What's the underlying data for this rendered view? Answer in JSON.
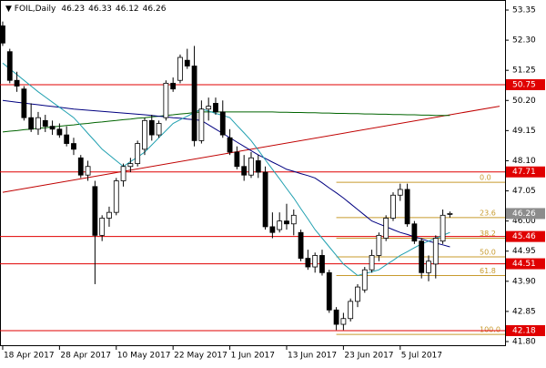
{
  "chart_data": {
    "type": "candlestick",
    "title": "FOIL,Daily",
    "categories": [
      "18 Apr 2017",
      null,
      null,
      null,
      null,
      null,
      null,
      null,
      "28 Apr 2017",
      null,
      null,
      null,
      null,
      null,
      null,
      null,
      "10 May 2017",
      null,
      null,
      null,
      null,
      null,
      null,
      null,
      "22 May 2017",
      null,
      null,
      null,
      null,
      null,
      null,
      null,
      "1 Jun 2017",
      null,
      null,
      null,
      null,
      null,
      null,
      null,
      "13 Jun 2017",
      null,
      null,
      null,
      null,
      null,
      null,
      null,
      "23 Jun 2017",
      null,
      null,
      null,
      null,
      null,
      null,
      null,
      "5 Jul 2017",
      null,
      null,
      null,
      null,
      null,
      null,
      null
    ],
    "ohlc": [
      [
        52.8,
        52.95,
        52.1,
        52.2
      ],
      [
        51.9,
        52.0,
        50.8,
        50.9
      ],
      [
        50.9,
        51.2,
        50.5,
        50.7
      ],
      [
        50.6,
        50.7,
        49.5,
        49.6
      ],
      [
        49.6,
        50.1,
        49.1,
        49.2
      ],
      [
        49.2,
        49.8,
        49.0,
        49.6
      ],
      [
        49.5,
        49.7,
        49.1,
        49.3
      ],
      [
        49.3,
        49.5,
        49.0,
        49.2
      ],
      [
        49.2,
        49.4,
        48.9,
        49.0
      ],
      [
        49.0,
        49.3,
        48.6,
        48.7
      ],
      [
        48.7,
        48.9,
        48.3,
        48.5
      ],
      [
        48.2,
        48.3,
        47.5,
        47.6
      ],
      [
        47.6,
        48.1,
        47.4,
        47.9
      ],
      [
        47.2,
        47.4,
        43.8,
        45.5
      ],
      [
        45.5,
        46.2,
        45.3,
        46.1
      ],
      [
        46.1,
        46.5,
        45.8,
        46.3
      ],
      [
        46.3,
        47.5,
        46.2,
        47.4
      ],
      [
        47.4,
        48.0,
        47.2,
        47.9
      ],
      [
        47.9,
        48.2,
        47.7,
        48.0
      ],
      [
        48.0,
        48.8,
        47.9,
        48.7
      ],
      [
        48.5,
        49.6,
        48.3,
        49.5
      ],
      [
        49.5,
        49.7,
        48.8,
        49.0
      ],
      [
        49.0,
        49.5,
        48.9,
        49.4
      ],
      [
        49.6,
        50.9,
        49.5,
        50.8
      ],
      [
        50.8,
        51.0,
        50.5,
        50.6
      ],
      [
        50.9,
        51.8,
        50.8,
        51.7
      ],
      [
        51.6,
        52.0,
        51.3,
        51.4
      ],
      [
        51.4,
        52.1,
        48.6,
        48.8
      ],
      [
        48.8,
        50.2,
        48.7,
        49.9
      ],
      [
        49.9,
        50.3,
        49.5,
        50.0
      ],
      [
        50.1,
        50.3,
        49.7,
        49.8
      ],
      [
        49.8,
        50.2,
        48.9,
        49.0
      ],
      [
        48.9,
        49.2,
        48.3,
        48.4
      ],
      [
        48.4,
        48.6,
        47.8,
        47.9
      ],
      [
        47.9,
        48.3,
        47.4,
        47.6
      ],
      [
        47.6,
        48.4,
        47.5,
        48.2
      ],
      [
        48.1,
        48.3,
        47.5,
        47.7
      ],
      [
        47.7,
        47.9,
        45.7,
        45.8
      ],
      [
        45.8,
        46.3,
        45.4,
        45.6
      ],
      [
        45.7,
        46.3,
        45.6,
        46.0
      ],
      [
        46.0,
        46.6,
        45.7,
        45.9
      ],
      [
        45.9,
        46.4,
        45.5,
        46.2
      ],
      [
        45.6,
        45.7,
        44.6,
        44.7
      ],
      [
        44.7,
        45.0,
        44.3,
        44.4
      ],
      [
        44.4,
        44.9,
        44.2,
        44.8
      ],
      [
        44.8,
        45.0,
        44.1,
        44.2
      ],
      [
        44.2,
        44.3,
        42.8,
        42.9
      ],
      [
        42.9,
        43.0,
        42.2,
        42.4
      ],
      [
        42.4,
        42.8,
        42.2,
        42.6
      ],
      [
        42.6,
        43.3,
        42.5,
        43.2
      ],
      [
        43.2,
        43.8,
        43.0,
        43.7
      ],
      [
        43.6,
        44.4,
        43.5,
        44.3
      ],
      [
        44.3,
        45.0,
        44.2,
        44.8
      ],
      [
        44.8,
        45.6,
        44.6,
        45.5
      ],
      [
        45.4,
        46.2,
        45.3,
        46.1
      ],
      [
        46.1,
        47.0,
        46.0,
        46.9
      ],
      [
        46.9,
        47.3,
        46.7,
        47.1
      ],
      [
        47.1,
        47.3,
        45.8,
        45.9
      ],
      [
        45.9,
        46.0,
        45.2,
        45.3
      ],
      [
        45.3,
        45.4,
        44.0,
        44.2
      ],
      [
        44.2,
        44.8,
        43.9,
        44.6
      ],
      [
        44.5,
        45.5,
        44.0,
        45.4
      ],
      [
        45.3,
        46.4,
        45.2,
        46.2
      ],
      [
        46.23,
        46.33,
        46.12,
        46.26
      ]
    ],
    "moving_averages": [
      {
        "color": "#006400",
        "values": [
          49.1,
          49.13,
          49.15,
          49.18,
          49.2,
          49.23,
          49.25,
          49.28,
          49.3,
          49.33,
          49.35,
          49.38,
          49.4,
          49.43,
          49.45,
          49.48,
          49.5,
          49.53,
          49.55,
          49.58,
          49.6,
          49.63,
          49.65,
          49.68,
          49.7,
          49.73,
          49.75,
          49.78,
          49.8,
          49.8,
          49.8,
          49.8,
          49.8,
          49.8,
          49.8,
          49.8,
          49.8,
          49.8,
          49.8,
          49.79,
          49.79,
          49.78,
          49.78,
          49.77,
          49.77,
          49.76,
          49.76,
          49.75,
          49.75,
          49.74,
          49.74,
          49.73,
          49.73,
          49.72,
          49.72,
          49.71,
          49.71,
          49.7,
          49.7,
          49.69,
          49.69,
          49.68,
          49.68,
          49.68
        ]
      },
      {
        "color": "#000080",
        "values": [
          50.2,
          50.17,
          50.14,
          50.11,
          50.08,
          50.05,
          50.02,
          49.99,
          49.96,
          49.93,
          49.9,
          49.88,
          49.86,
          49.84,
          49.82,
          49.8,
          49.78,
          49.76,
          49.74,
          49.72,
          49.7,
          49.68,
          49.65,
          49.63,
          49.6,
          49.58,
          49.55,
          49.53,
          49.5,
          49.35,
          49.2,
          49.05,
          48.9,
          48.75,
          48.6,
          48.45,
          48.3,
          48.18,
          48.05,
          47.93,
          47.8,
          47.73,
          47.65,
          47.58,
          47.5,
          47.33,
          47.15,
          46.98,
          46.8,
          46.6,
          46.4,
          46.2,
          46.0,
          45.9,
          45.8,
          45.7,
          45.6,
          45.53,
          45.45,
          45.38,
          45.3,
          45.23,
          45.17,
          45.1
        ]
      },
      {
        "color": "#20a0b0",
        "values": [
          51.5,
          51.3,
          51.1,
          50.9,
          50.7,
          50.5,
          50.32,
          50.14,
          49.96,
          49.78,
          49.6,
          49.33,
          49.05,
          48.78,
          48.5,
          48.3,
          48.1,
          47.9,
          48.07,
          48.23,
          48.4,
          48.65,
          48.9,
          49.15,
          49.4,
          49.53,
          49.65,
          49.78,
          49.9,
          49.83,
          49.75,
          49.68,
          49.6,
          49.33,
          49.07,
          48.8,
          48.47,
          48.13,
          47.8,
          47.47,
          47.13,
          46.8,
          46.43,
          46.07,
          45.7,
          45.4,
          45.1,
          44.8,
          44.5,
          44.3,
          44.1,
          44.17,
          44.23,
          44.3,
          44.47,
          44.63,
          44.8,
          44.93,
          45.07,
          45.2,
          45.3,
          45.4,
          45.5,
          45.6
        ]
      }
    ],
    "trendline": {
      "color": "#c00000",
      "x": [
        0,
        70
      ],
      "values": [
        47.0,
        50.0
      ]
    },
    "levels": [
      {
        "value": 50.75,
        "color": "#e00000"
      },
      {
        "value": 47.71,
        "color": "#e00000"
      },
      {
        "value": 45.46,
        "color": "#e00000"
      },
      {
        "value": 44.51,
        "color": "#e00000"
      },
      {
        "value": 42.18,
        "color": "#e00000"
      }
    ],
    "fibonacci": {
      "color": "#c89b2e",
      "x_start": 47,
      "levels": [
        {
          "label": "0.0",
          "value": 47.35
        },
        {
          "label": "23.6",
          "value": 46.12
        },
        {
          "label": "38.2",
          "value": 45.4
        },
        {
          "label": "50.0",
          "value": 44.75
        },
        {
          "label": "61.8",
          "value": 44.1
        },
        {
          "label": "100.0",
          "value": 42.05
        }
      ]
    },
    "xlim": [
      -0.38,
      70.77
    ],
    "ylim": [
      41.64,
      53.7
    ],
    "yticks": [
      53.35,
      {
        "value": 52.3,
        "label": "52.30"
      },
      51.25,
      {
        "value": 50.2,
        "label": "50.20"
      },
      49.15,
      {
        "value": 48.1,
        "label": "48.10"
      },
      47.05,
      {
        "value": 46,
        "label": "46.00"
      },
      44.95,
      {
        "value": 43.9,
        "label": "43.90"
      },
      42.85,
      {
        "value": 41.8,
        "label": "41.80"
      }
    ]
  }
}
